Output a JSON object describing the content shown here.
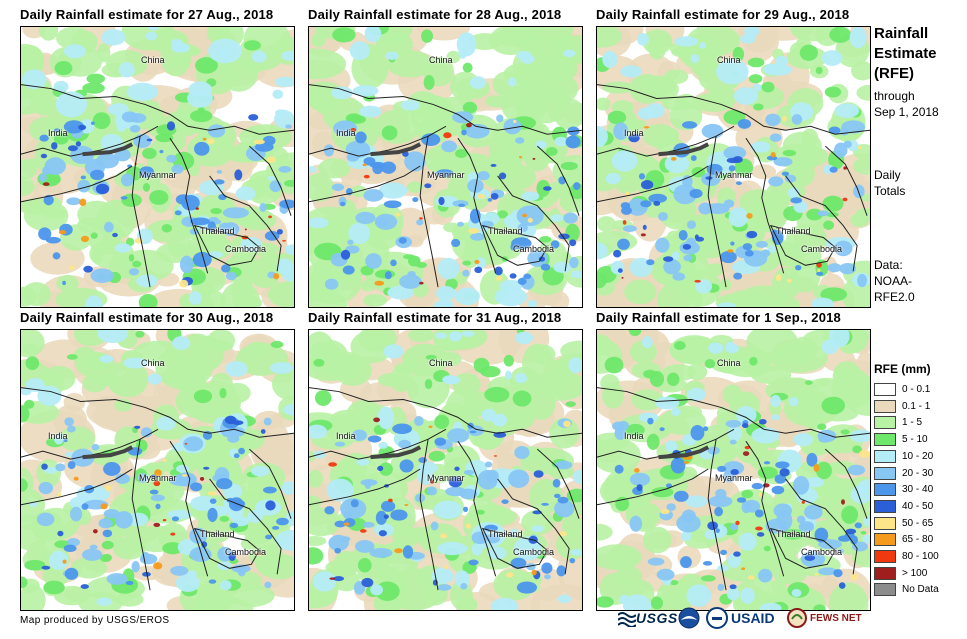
{
  "panels": [
    {
      "title": "Daily Rainfall estimate for 27 Aug., 2018",
      "seed": 27
    },
    {
      "title": "Daily Rainfall estimate for 28 Aug., 2018",
      "seed": 28
    },
    {
      "title": "Daily Rainfall estimate for 29 Aug., 2018",
      "seed": 29
    },
    {
      "title": "Daily Rainfall estimate for 30 Aug., 2018",
      "seed": 30
    },
    {
      "title": "Daily Rainfall estimate for 31 Aug., 2018",
      "seed": 31
    },
    {
      "title": "Daily Rainfall estimate for 1  Sep., 2018",
      "seed": 1
    }
  ],
  "places": {
    "china": "China",
    "india": "India",
    "myanmar": "Myanmar",
    "thailand": "Thailand",
    "cambodia": "Cambodia"
  },
  "sidebar": {
    "title_line1": "Rainfall",
    "title_line2": "Estimate",
    "title_line3": "(RFE)",
    "through": "through",
    "date": "Sep 1, 2018",
    "daily": "Daily",
    "totals": "Totals",
    "data_label": "Data:",
    "data_source_1": "NOAA-",
    "data_source_2": "RFE2.0"
  },
  "legend": {
    "title": "RFE (mm)",
    "items": [
      {
        "label": "0 - 0.1",
        "color": "#ffffff"
      },
      {
        "label": "0.1 - 1",
        "color": "#ead9bc"
      },
      {
        "label": "1 - 5",
        "color": "#b8f2a4"
      },
      {
        "label": "5 - 10",
        "color": "#6ee86a"
      },
      {
        "label": "10 - 20",
        "color": "#b4ecf7"
      },
      {
        "label": "20 - 30",
        "color": "#88c6f4"
      },
      {
        "label": "30 - 40",
        "color": "#4c96ec"
      },
      {
        "label": "40 - 50",
        "color": "#2a5fd8"
      },
      {
        "label": "50 - 65",
        "color": "#fde58a"
      },
      {
        "label": "65 - 80",
        "color": "#f59a1b"
      },
      {
        "label": "80 - 100",
        "color": "#f0390f"
      },
      {
        "label": "> 100",
        "color": "#a01e1e"
      },
      {
        "label": "No Data",
        "color": "#8c8c8c"
      }
    ]
  },
  "credit": "Map produced by USGS/EROS",
  "logos": {
    "usgs": "USGS",
    "usaid": "USAID",
    "fews": "FEWS NET"
  }
}
